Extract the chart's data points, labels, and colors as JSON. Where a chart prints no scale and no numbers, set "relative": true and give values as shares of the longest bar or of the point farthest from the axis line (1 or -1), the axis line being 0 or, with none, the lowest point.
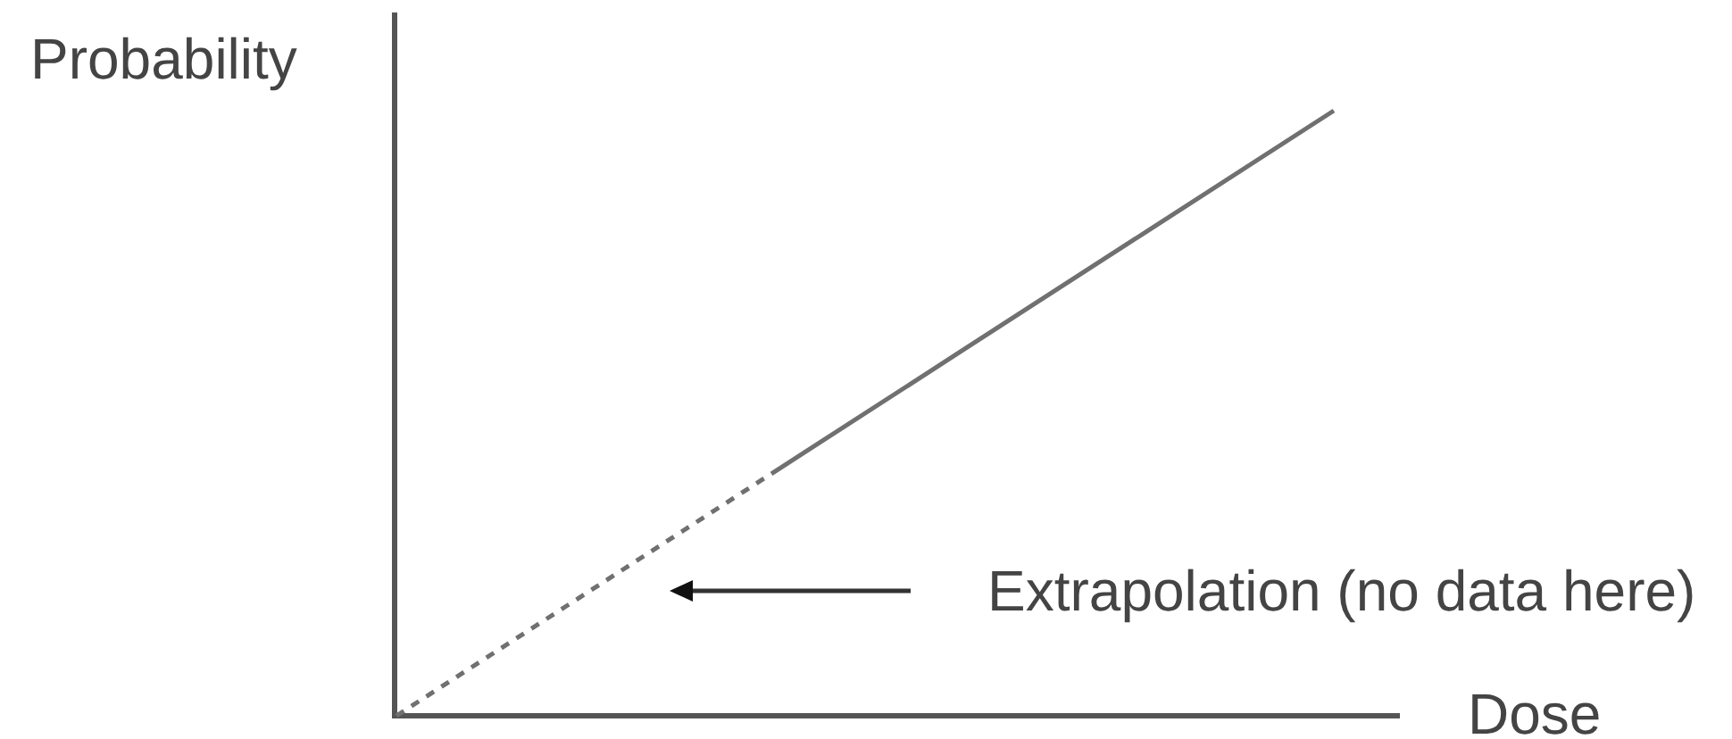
{
  "chart_data": {
    "type": "line",
    "xlabel": "Dose",
    "ylabel": "Probability",
    "relative": true,
    "marker": "none",
    "categories": [
      null,
      null,
      null,
      null,
      null,
      null
    ],
    "series": [
      {
        "color": "#707070",
        "line_style": "dashed",
        "values": [
          0,
          0.2,
          0.4,
          null,
          null,
          null
        ]
      },
      {
        "color": "#707070",
        "line_style": "solid",
        "values": [
          null,
          null,
          0.4,
          0.6,
          0.8,
          1
        ]
      }
    ],
    "annotations": [
      "Extrapolation (no data here)"
    ]
  }
}
